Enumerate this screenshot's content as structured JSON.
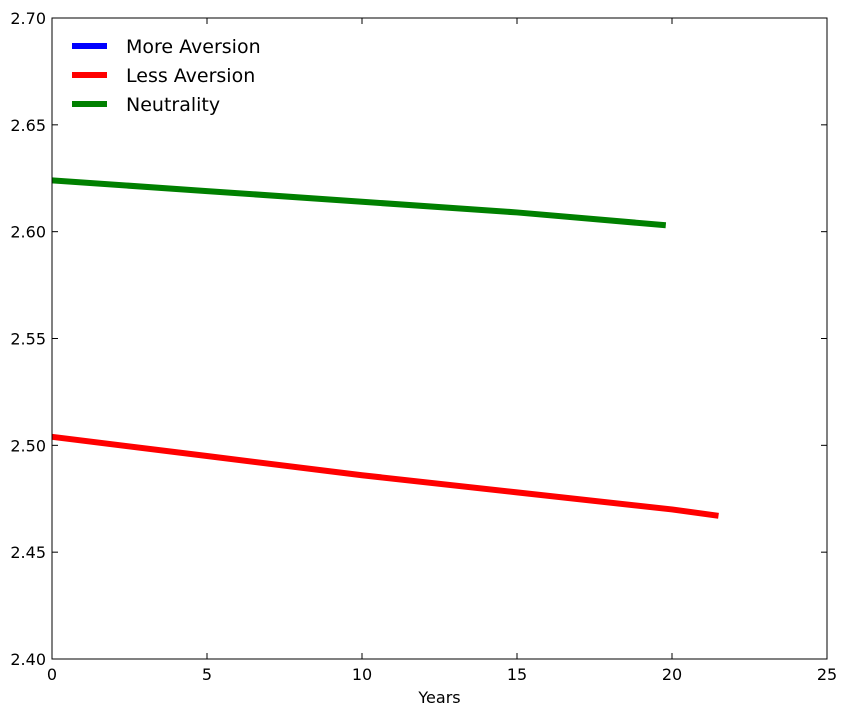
{
  "chart_data": {
    "type": "line",
    "title": "",
    "xlabel": "Years",
    "ylabel": "",
    "xlim": [
      0,
      25
    ],
    "ylim": [
      2.4,
      2.7
    ],
    "x_ticks": [
      "0",
      "5",
      "10",
      "15",
      "20",
      "25"
    ],
    "y_ticks": [
      "2.40",
      "2.45",
      "2.50",
      "2.55",
      "2.60",
      "2.65",
      "2.70"
    ],
    "grid": false,
    "legend_position": "top-left",
    "series": [
      {
        "name": "More Aversion",
        "color": "#0000ff",
        "x": [],
        "y": []
      },
      {
        "name": "Less Aversion",
        "color": "#ff0000",
        "x": [
          0,
          5,
          10,
          15,
          20,
          21.5
        ],
        "y": [
          2.504,
          2.495,
          2.486,
          2.478,
          2.47,
          2.467
        ]
      },
      {
        "name": "Neutrality",
        "color": "#008000",
        "x": [
          0,
          5,
          10,
          15,
          19.8
        ],
        "y": [
          2.624,
          2.619,
          2.614,
          2.609,
          2.603
        ]
      }
    ]
  }
}
